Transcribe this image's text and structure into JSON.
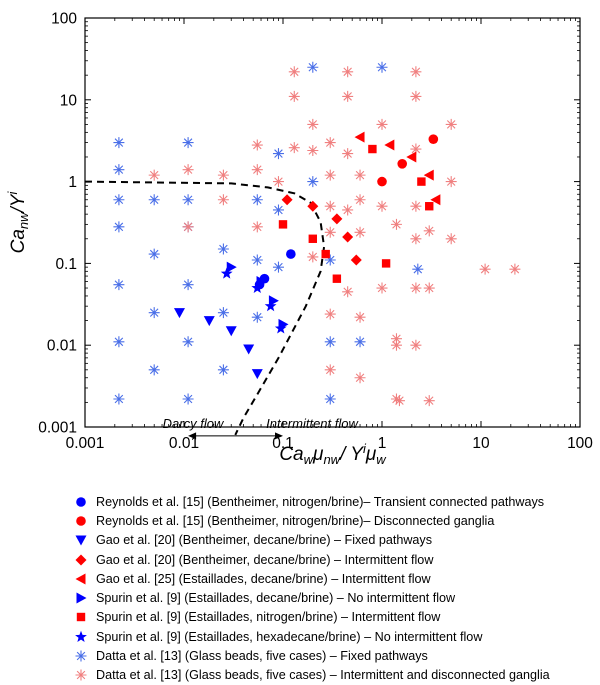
{
  "chart_data": {
    "type": "scatter",
    "title": "",
    "xlabel_parts": [
      "Ca",
      "w",
      "μ",
      "nw",
      "/ Y",
      "i",
      "μ",
      "w"
    ],
    "ylabel_parts": [
      "Ca",
      "nw",
      "/Y",
      "i"
    ],
    "x_scale": "log",
    "y_scale": "log",
    "xlim": [
      0.001,
      100
    ],
    "ylim": [
      0.001,
      100
    ],
    "x_ticks": [
      "0.001",
      "0.01",
      "0.1",
      "1",
      "10",
      "100"
    ],
    "y_ticks": [
      "0.001",
      "0.01",
      "0.1",
      "1",
      "10",
      "100"
    ],
    "grid": false,
    "legend_position": "below",
    "annotations": {
      "left_region": "Darcy flow",
      "right_region": "Intermittent flow",
      "arrow_range": [
        0.011,
        0.1
      ],
      "arrow_y": 0.00078,
      "boundary_curve": [
        [
          0.001,
          1.0
        ],
        [
          0.03,
          0.95
        ],
        [
          0.07,
          0.85
        ],
        [
          0.13,
          0.72
        ],
        [
          0.19,
          0.55
        ],
        [
          0.24,
          0.32
        ],
        [
          0.26,
          0.16
        ],
        [
          0.24,
          0.08
        ],
        [
          0.17,
          0.03
        ],
        [
          0.09,
          0.007
        ],
        [
          0.055,
          0.0025
        ],
        [
          0.04,
          0.0013
        ],
        [
          0.033,
          0.0008
        ]
      ]
    },
    "series": [
      {
        "name": "Reynolds et al. [15] (Bentheimer, nitrogen/brine)– Transient connected pathways",
        "marker": "circle",
        "color": "#0000FF",
        "points": [
          [
            0.065,
            0.065
          ],
          [
            0.058,
            0.055
          ],
          [
            0.12,
            0.13
          ]
        ]
      },
      {
        "name": "Reynolds et al. [15] (Bentheimer, nitrogen/brine)– Disconnected ganglia",
        "marker": "circle",
        "color": "#FF0000",
        "points": [
          [
            3.3,
            3.3
          ],
          [
            1.6,
            1.65
          ],
          [
            1.0,
            1.0
          ]
        ]
      },
      {
        "name": "Gao et al. [20] (Bentheimer, decane/brine) – Fixed pathways",
        "marker": "triangle-down",
        "color": "#0000FF",
        "points": [
          [
            0.009,
            0.025
          ],
          [
            0.018,
            0.02
          ],
          [
            0.03,
            0.015
          ],
          [
            0.045,
            0.009
          ],
          [
            0.055,
            0.0045
          ]
        ]
      },
      {
        "name": "Gao et al. [20] (Bentheimer, decane/brine) – Intermittent flow",
        "marker": "diamond",
        "color": "#FF0000",
        "points": [
          [
            0.11,
            0.6
          ],
          [
            0.2,
            0.5
          ],
          [
            0.35,
            0.35
          ],
          [
            0.45,
            0.21
          ],
          [
            0.55,
            0.11
          ]
        ]
      },
      {
        "name": "Gao et al. [25] (Estaillades, decane/brine) – Intermittent flow",
        "marker": "triangle-left",
        "color": "#FF0000",
        "points": [
          [
            0.6,
            3.5
          ],
          [
            1.2,
            2.8
          ],
          [
            2.0,
            2.0
          ],
          [
            3.0,
            1.2
          ],
          [
            3.5,
            0.6
          ]
        ]
      },
      {
        "name": "Spurin et al. [9] (Estaillades, decane/brine) – No intermittent flow",
        "marker": "triangle-right",
        "color": "#0000FF",
        "points": [
          [
            0.03,
            0.09
          ],
          [
            0.06,
            0.06
          ],
          [
            0.08,
            0.035
          ],
          [
            0.1,
            0.018
          ]
        ]
      },
      {
        "name": "Spurin et al. [9] (Estaillades, nitrogen/brine) – Intermittent flow",
        "marker": "square",
        "color": "#FF0000",
        "points": [
          [
            0.1,
            0.3
          ],
          [
            0.2,
            0.2
          ],
          [
            0.27,
            0.13
          ],
          [
            0.35,
            0.065
          ],
          [
            0.8,
            2.5
          ],
          [
            2.5,
            1.0
          ],
          [
            3.0,
            0.5
          ],
          [
            1.1,
            0.1
          ]
        ]
      },
      {
        "name": "Spurin et al. [9] (Estaillades, hexadecane/brine) – No intermittent flow",
        "marker": "star",
        "color": "#0000FF",
        "points": [
          [
            0.027,
            0.075
          ],
          [
            0.055,
            0.05
          ],
          [
            0.075,
            0.03
          ],
          [
            0.095,
            0.016
          ]
        ]
      },
      {
        "name": "Datta et al. [13] (Glass beads, five cases) – Fixed pathways",
        "marker": "asterisk",
        "color": "#4A6FE8",
        "points": [
          [
            0.0022,
            3.0
          ],
          [
            0.0022,
            1.4
          ],
          [
            0.0022,
            0.6
          ],
          [
            0.0022,
            0.28
          ],
          [
            0.0022,
            0.055
          ],
          [
            0.0022,
            0.011
          ],
          [
            0.0022,
            0.0022
          ],
          [
            0.005,
            0.6
          ],
          [
            0.005,
            0.13
          ],
          [
            0.005,
            0.025
          ],
          [
            0.005,
            0.005
          ],
          [
            0.011,
            3.0
          ],
          [
            0.011,
            0.6
          ],
          [
            0.011,
            0.28
          ],
          [
            0.011,
            0.055
          ],
          [
            0.011,
            0.011
          ],
          [
            0.011,
            0.0022
          ],
          [
            0.025,
            0.15
          ],
          [
            0.025,
            0.025
          ],
          [
            0.025,
            0.005
          ],
          [
            0.055,
            0.6
          ],
          [
            0.055,
            0.11
          ],
          [
            0.055,
            0.022
          ],
          [
            0.09,
            2.2
          ],
          [
            0.09,
            0.45
          ],
          [
            0.09,
            0.09
          ],
          [
            0.2,
            25.0
          ],
          [
            0.2,
            1.0
          ],
          [
            0.3,
            0.11
          ],
          [
            0.3,
            0.011
          ],
          [
            0.3,
            0.0022
          ],
          [
            0.6,
            0.011
          ],
          [
            1.0,
            25.0
          ],
          [
            2.3,
            0.085
          ]
        ]
      },
      {
        "name": "Datta et al. [13] (Glass beads, five cases) –  Intermittent and disconnected ganglia",
        "marker": "asterisk",
        "color": "#F08080",
        "points": [
          [
            0.005,
            1.2
          ],
          [
            0.011,
            1.4
          ],
          [
            0.011,
            0.28
          ],
          [
            0.025,
            1.2
          ],
          [
            0.025,
            0.6
          ],
          [
            0.055,
            2.8
          ],
          [
            0.055,
            1.4
          ],
          [
            0.055,
            0.28
          ],
          [
            0.09,
            1.0
          ],
          [
            0.13,
            22.0
          ],
          [
            0.13,
            11.0
          ],
          [
            0.13,
            2.6
          ],
          [
            0.2,
            5.0
          ],
          [
            0.2,
            2.4
          ],
          [
            0.2,
            0.12
          ],
          [
            0.3,
            3.0
          ],
          [
            0.3,
            1.2
          ],
          [
            0.3,
            0.5
          ],
          [
            0.3,
            0.24
          ],
          [
            0.3,
            0.024
          ],
          [
            0.3,
            0.005
          ],
          [
            0.45,
            22.0
          ],
          [
            0.45,
            11.0
          ],
          [
            0.45,
            2.2
          ],
          [
            0.45,
            0.45
          ],
          [
            0.45,
            0.045
          ],
          [
            0.6,
            1.2
          ],
          [
            0.6,
            0.6
          ],
          [
            0.6,
            0.24
          ],
          [
            0.6,
            0.022
          ],
          [
            0.6,
            0.004
          ],
          [
            1.0,
            5.0
          ],
          [
            1.0,
            0.5
          ],
          [
            1.0,
            0.05
          ],
          [
            1.4,
            0.3
          ],
          [
            1.4,
            0.012
          ],
          [
            1.4,
            0.01
          ],
          [
            1.4,
            0.0022
          ],
          [
            1.5,
            0.0021
          ],
          [
            2.2,
            22.0
          ],
          [
            2.2,
            11.0
          ],
          [
            2.2,
            2.5
          ],
          [
            2.2,
            0.5
          ],
          [
            2.2,
            0.2
          ],
          [
            2.2,
            0.05
          ],
          [
            2.2,
            0.01
          ],
          [
            3.0,
            0.25
          ],
          [
            3.0,
            0.05
          ],
          [
            3.0,
            0.0021
          ],
          [
            5.0,
            5.0
          ],
          [
            5.0,
            1.0
          ],
          [
            5.0,
            0.2
          ],
          [
            11.0,
            0.085
          ],
          [
            22.0,
            0.085
          ]
        ]
      }
    ]
  }
}
